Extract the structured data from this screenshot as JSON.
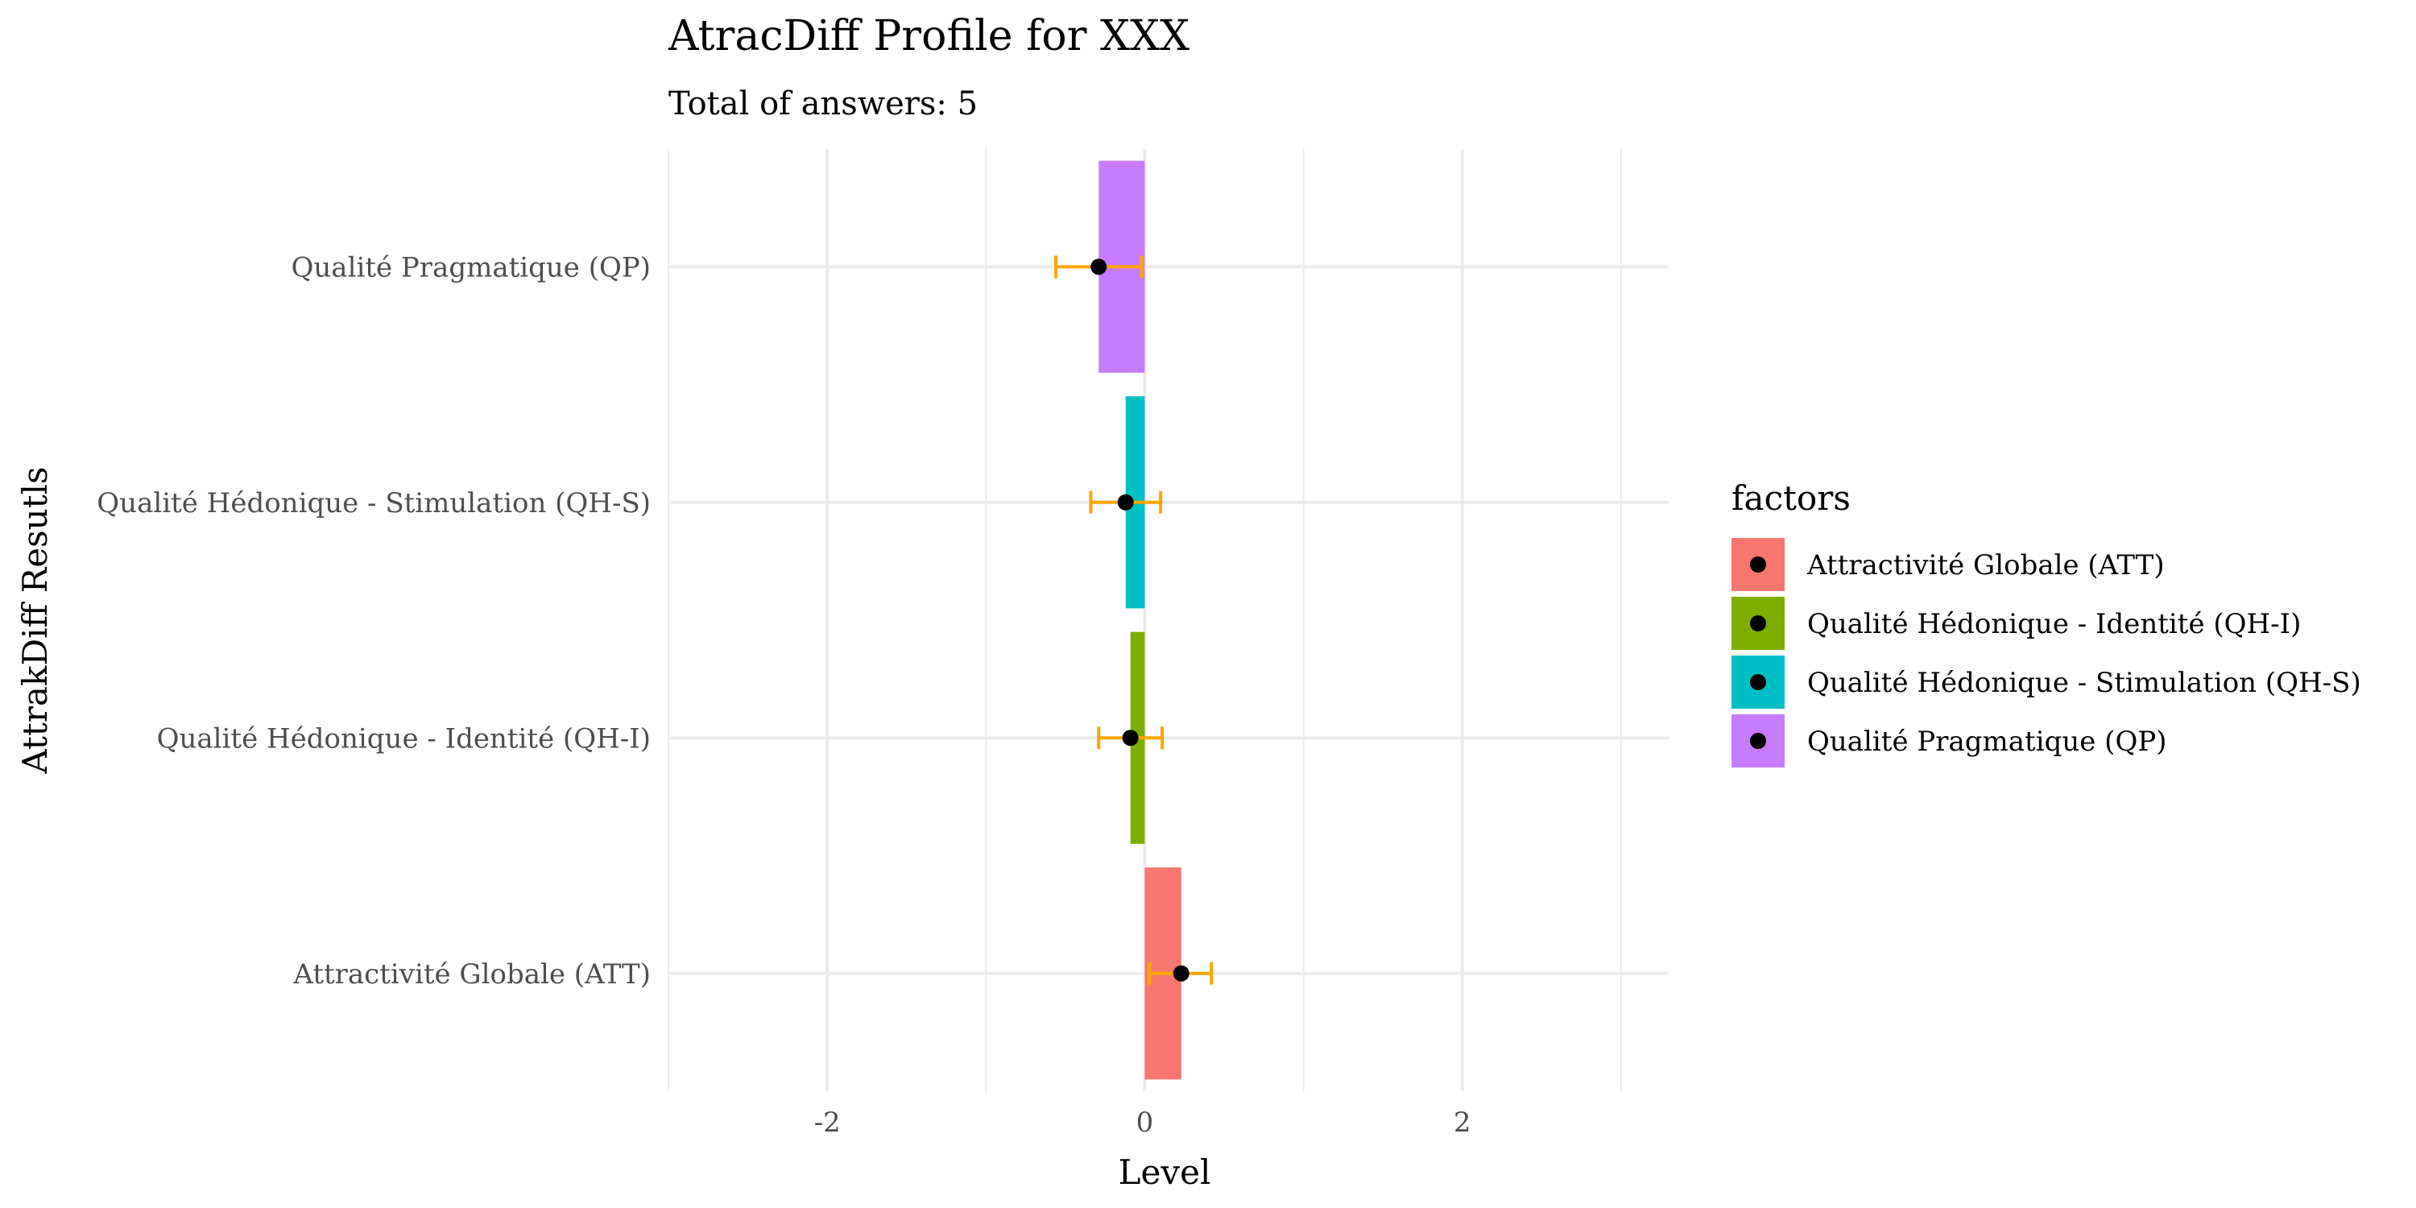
{
  "chart_data": {
    "type": "bar",
    "orientation": "horizontal",
    "title": "AtracDiff Profile for XXX",
    "subtitle": "Total of answers: 5",
    "xlabel": "Level",
    "ylabel": "AttrakDiff Resutls",
    "xlim": [
      -3.0,
      3.3
    ],
    "x_ticks": [
      -2,
      0,
      2
    ],
    "x_tick_labels": [
      "-2",
      "0",
      "2"
    ],
    "grid": true,
    "categories": [
      "Attractivité Globale (ATT)",
      "Qualité Hédonique - Identité (QH-I)",
      "Qualité Hédonique - Stimulation (QH-S)",
      "Qualité Pragmatique (QP)"
    ],
    "values": [
      0.23,
      -0.09,
      -0.12,
      -0.29
    ],
    "error_low": [
      0.03,
      -0.29,
      -0.34,
      -0.56
    ],
    "error_high": [
      0.42,
      0.11,
      0.1,
      -0.02
    ],
    "bar_colors": [
      "#F8766D",
      "#7CAE00",
      "#00BFC4",
      "#C77CFF"
    ],
    "point_color": "#000000",
    "error_color": "#FFA500",
    "legend": {
      "title": "factors",
      "position": "right",
      "entries": [
        "Attractivité Globale (ATT)",
        "Qualité Hédonique - Identité (QH-I)",
        "Qualité Hédonique - Stimulation (QH-S)",
        "Qualité Pragmatique (QP)"
      ]
    }
  }
}
